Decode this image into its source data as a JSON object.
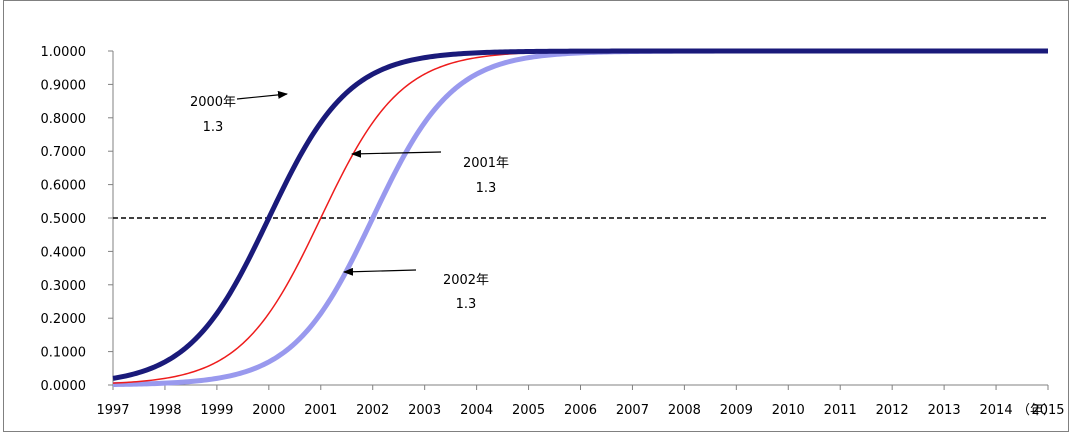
{
  "chart_data": {
    "type": "line",
    "title": "",
    "xlabel": "",
    "ylabel": "",
    "x_unit_label": "（年）",
    "categories": [
      "1997",
      "1998",
      "1999",
      "2000",
      "2001",
      "2002",
      "2003",
      "2004",
      "2005",
      "2006",
      "2007",
      "2008",
      "2009",
      "2010",
      "2011",
      "2012",
      "2013",
      "2014",
      "2015"
    ],
    "y_tick_labels": [
      "0.0000",
      "0.1000",
      "0.2000",
      "0.3000",
      "0.4000",
      "0.5000",
      "0.6000",
      "0.7000",
      "0.8000",
      "0.9000",
      "1.0000"
    ],
    "ylim": [
      0,
      1
    ],
    "xlim": [
      1997,
      2015
    ],
    "grid": false,
    "legend": "none",
    "reference_line": {
      "y": 0.5,
      "style": "dashed",
      "color": "#000000"
    },
    "series": [
      {
        "midpoint": 2000,
        "steepness": 1.3,
        "color": "#1a1a7a",
        "width": "thick",
        "x": [
          1997,
          1998,
          1999,
          2000,
          2001,
          2002,
          2003,
          2004,
          2005,
          2006,
          2015
        ],
        "values": [
          0.02,
          0.069,
          0.214,
          0.5,
          0.786,
          0.931,
          0.98,
          0.994,
          0.998,
          0.9996,
          1.0
        ]
      },
      {
        "midpoint": 2001,
        "steepness": 1.3,
        "color": "#ee1c1c",
        "width": "thin",
        "x": [
          1997,
          1998,
          1999,
          2000,
          2001,
          2002,
          2003,
          2004,
          2005,
          2006,
          2015
        ],
        "values": [
          0.006,
          0.02,
          0.069,
          0.214,
          0.5,
          0.786,
          0.931,
          0.98,
          0.994,
          0.998,
          1.0
        ]
      },
      {
        "midpoint": 2002,
        "steepness": 1.3,
        "color": "#9999ee",
        "width": "thick",
        "x": [
          1997,
          1998,
          1999,
          2000,
          2001,
          2002,
          2003,
          2004,
          2005,
          2006,
          2015
        ],
        "values": [
          0.002,
          0.006,
          0.02,
          0.069,
          0.214,
          0.5,
          0.786,
          0.931,
          0.98,
          0.994,
          1.0
        ]
      }
    ],
    "annotations": [
      {
        "line1": "2000年",
        "line2": "1.3",
        "series": 0
      },
      {
        "line1": "2001年",
        "line2": "1.3",
        "series": 1
      },
      {
        "line1": "2002年",
        "line2": "1.3",
        "series": 2
      }
    ]
  }
}
